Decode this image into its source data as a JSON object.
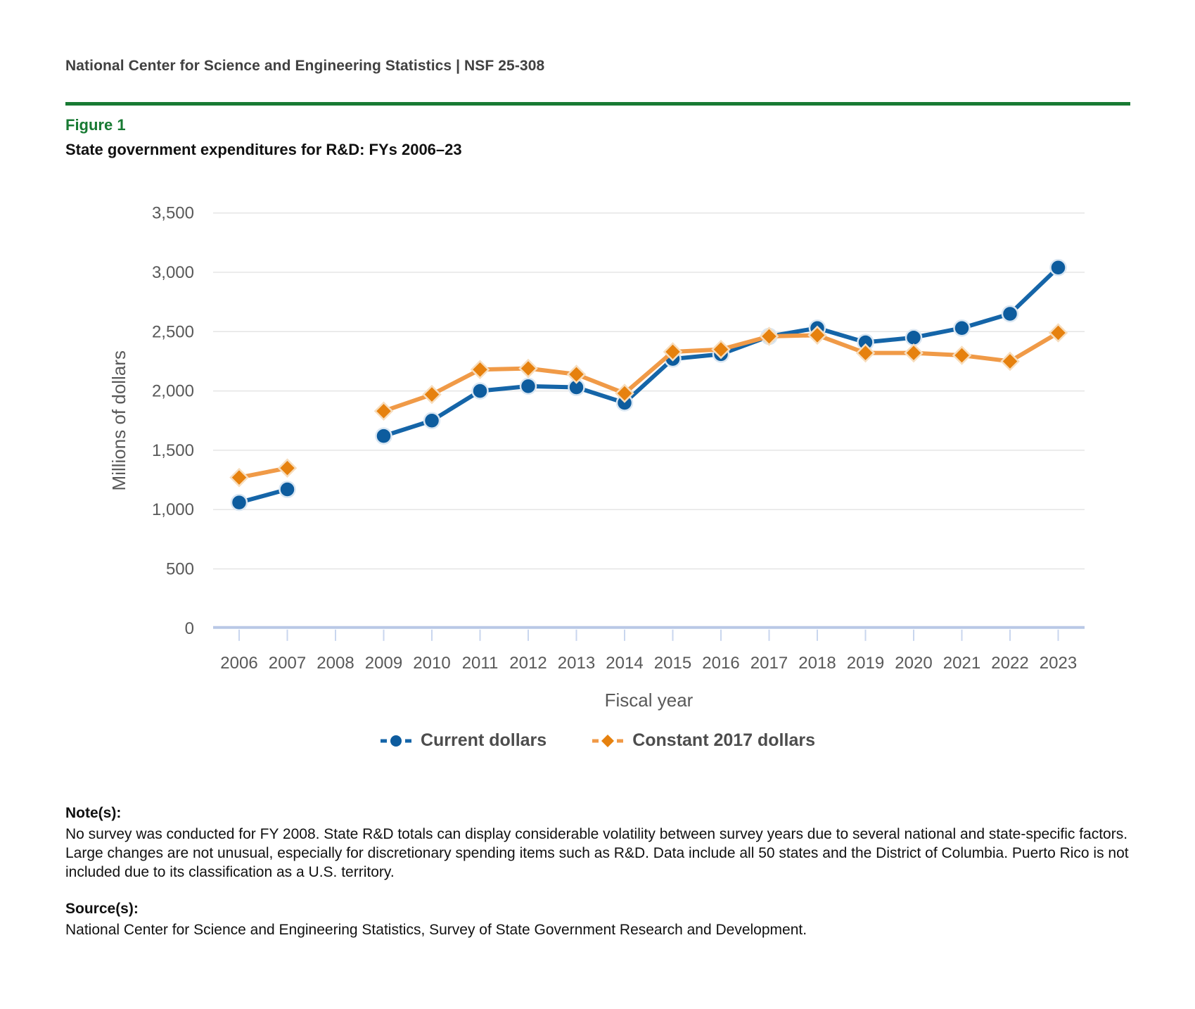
{
  "header": {
    "text": "National Center for Science and Engineering Statistics | NSF 25-308"
  },
  "figure": {
    "label": "Figure 1",
    "title": "State government expenditures for R&D: FYs 2006–23"
  },
  "colors": {
    "accent_green": "#187a33",
    "current_line": "#1565a8",
    "current_marker": "#0d5c9e",
    "current_halo": "#d9e6f2",
    "constant_line": "#f09a47",
    "constant_marker": "#e6810e",
    "constant_halo": "#f7ddbd",
    "gridline": "#e5e5e5",
    "axis_line": "#b9c8e6",
    "axis_tick": "#c9d6ee",
    "tick_text": "#595959"
  },
  "chart_data": {
    "type": "line",
    "title": "State government expenditures for R&D: FYs 2006–23",
    "xlabel": "Fiscal year",
    "ylabel": "Millions of dollars",
    "ylim": [
      0,
      3500
    ],
    "ytick_step": 500,
    "ytick_labels": [
      "0",
      "500",
      "1,000",
      "1,500",
      "2,000",
      "2,500",
      "3,000",
      "3,500"
    ],
    "grid": true,
    "legend_position": "bottom",
    "gap_note": "No survey was conducted for FY 2008; the 2008 values are missing and each line breaks there.",
    "categories": [
      "2006",
      "2007",
      "2008",
      "2009",
      "2010",
      "2011",
      "2012",
      "2013",
      "2014",
      "2015",
      "2016",
      "2017",
      "2018",
      "2019",
      "2020",
      "2021",
      "2022",
      "2023"
    ],
    "series": [
      {
        "name": "Current dollars",
        "marker": "circle",
        "color": "#0d5c9e",
        "line_color": "#1565a8",
        "halo": "#d9e6f2",
        "values": [
          1060,
          1170,
          null,
          1620,
          1750,
          2000,
          2040,
          2030,
          1900,
          2270,
          2310,
          2460,
          2530,
          2410,
          2450,
          2530,
          2650,
          3040
        ]
      },
      {
        "name": "Constant 2017 dollars",
        "marker": "diamond",
        "color": "#e6810e",
        "line_color": "#f09a47",
        "halo": "#f7ddbd",
        "values": [
          1270,
          1350,
          null,
          1830,
          1970,
          2180,
          2190,
          2140,
          1980,
          2330,
          2350,
          2460,
          2470,
          2320,
          2320,
          2300,
          2250,
          2490
        ]
      }
    ]
  },
  "notes": {
    "heading": "Note(s):",
    "body": "No survey was conducted for FY 2008. State R&D totals can display considerable volatility between survey years due to several national and state-specific factors. Large changes are not unusual, especially for discretionary spending items such as R&D. Data include all 50 states and the District of Columbia. Puerto Rico is not included due to its classification as a U.S. territory."
  },
  "source": {
    "heading": "Source(s):",
    "body": "National Center for Science and Engineering Statistics, Survey of State Government Research and Development."
  }
}
